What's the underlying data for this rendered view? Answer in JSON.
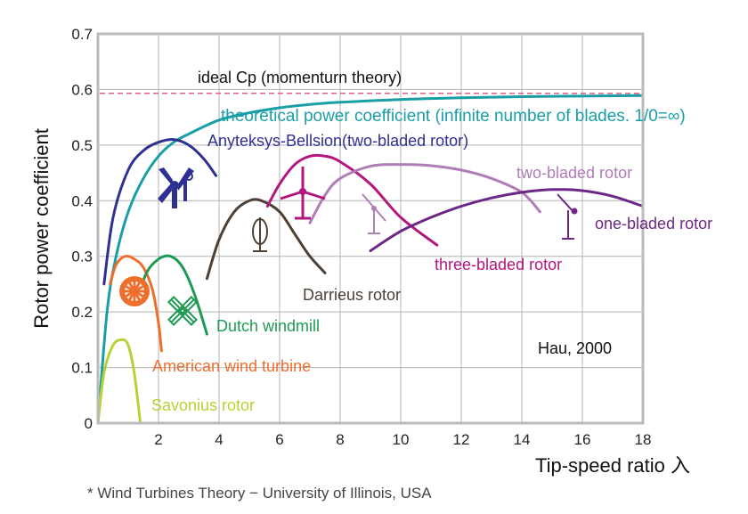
{
  "chart_data": {
    "type": "line",
    "title": "",
    "xlabel": "Tip-speed ratio 入",
    "ylabel": "Rotor power coefficient",
    "xlim": [
      0,
      18
    ],
    "ylim": [
      0,
      0.7
    ],
    "x_ticks": [
      "2",
      "4",
      "6",
      "8",
      "10",
      "12",
      "14",
      "16",
      "18"
    ],
    "y_ticks": [
      "0",
      "0.1",
      "0.2",
      "0.3",
      "0.4",
      "0.5",
      "0.6",
      "0.7"
    ],
    "grid": true,
    "annotation": "Hau, 2000",
    "reference_line": {
      "label": "ideal  Cp (momenturn theory)",
      "y": 0.593
    },
    "series": [
      {
        "name": "theoretical power coefficient (infinite number of blades. 1/0=∞)",
        "x": [
          0,
          0.3,
          0.6,
          1,
          1.5,
          2,
          2.5,
          3,
          4,
          5,
          6,
          7,
          8,
          10,
          12,
          14,
          16,
          18
        ],
        "y": [
          0,
          0.2,
          0.3,
          0.38,
          0.44,
          0.48,
          0.505,
          0.52,
          0.545,
          0.558,
          0.567,
          0.573,
          0.577,
          0.582,
          0.585,
          0.587,
          0.588,
          0.589
        ]
      },
      {
        "name": "Anyteksys-Bellsion(two-bladed rotor)",
        "x": [
          0.2,
          0.5,
          1,
          1.5,
          2,
          2.5,
          3,
          3.5,
          3.9
        ],
        "y": [
          0.25,
          0.37,
          0.455,
          0.49,
          0.505,
          0.51,
          0.5,
          0.475,
          0.445
        ]
      },
      {
        "name": "Savonius rotor",
        "x": [
          0,
          0.2,
          0.5,
          0.8,
          1,
          1.2,
          1.4
        ],
        "y": [
          0,
          0.09,
          0.14,
          0.15,
          0.14,
          0.09,
          0
        ]
      },
      {
        "name": "American wind turbine",
        "x": [
          0.4,
          0.6,
          0.9,
          1.2,
          1.5,
          1.8,
          2,
          2.1
        ],
        "y": [
          0.25,
          0.285,
          0.3,
          0.295,
          0.28,
          0.24,
          0.18,
          0.13
        ]
      },
      {
        "name": "Dutch windmill",
        "x": [
          1.3,
          1.6,
          2,
          2.4,
          2.8,
          3.2,
          3.6
        ],
        "y": [
          0.22,
          0.27,
          0.295,
          0.3,
          0.28,
          0.23,
          0.16
        ]
      },
      {
        "name": "Darrieus rotor",
        "x": [
          3.6,
          4,
          4.5,
          5,
          5.4,
          6,
          6.5,
          7,
          7.5
        ],
        "y": [
          0.26,
          0.33,
          0.38,
          0.4,
          0.4,
          0.38,
          0.34,
          0.3,
          0.27
        ]
      },
      {
        "name": "three-bladed rotor",
        "x": [
          5.6,
          6,
          6.5,
          7,
          7.5,
          8,
          9,
          10,
          11.2
        ],
        "y": [
          0.39,
          0.43,
          0.465,
          0.48,
          0.48,
          0.47,
          0.43,
          0.37,
          0.32
        ]
      },
      {
        "name": "two-bladed rotor",
        "x": [
          7,
          7.5,
          8,
          9,
          10,
          11,
          12,
          13,
          14,
          14.6
        ],
        "y": [
          0.36,
          0.41,
          0.44,
          0.462,
          0.465,
          0.463,
          0.455,
          0.44,
          0.415,
          0.38
        ]
      },
      {
        "name": "one-bladed rotor",
        "x": [
          9,
          10,
          11,
          12,
          13,
          14,
          15,
          16,
          17,
          18
        ],
        "y": [
          0.31,
          0.345,
          0.37,
          0.39,
          0.405,
          0.415,
          0.42,
          0.418,
          0.408,
          0.39
        ]
      }
    ],
    "colors": {
      "theoretical": "#1a9ea6",
      "anyteksys": "#2e3192",
      "savonius": "#b5d334",
      "american": "#ee6f2d",
      "dutch": "#1f9a55",
      "darrieus": "#4d4034",
      "three_bladed": "#b2177d",
      "two_bladed": "#b07db8",
      "one_bladed": "#6d2786",
      "ideal": "#d4507a",
      "grid": "#b3b3b3",
      "frame": "#bbbbbb"
    },
    "icons": [
      "multi-blade-wheel-icon",
      "dutch-windmill-icon",
      "two-bladed-rotor-icon",
      "darrieus-rotor-icon",
      "three-bladed-rotor-icon",
      "one-bladed-rotor-icon",
      "anyteksys-rotor-icon"
    ]
  },
  "footnote": "* Wind Turbines Theory − University of Illinois, USA"
}
